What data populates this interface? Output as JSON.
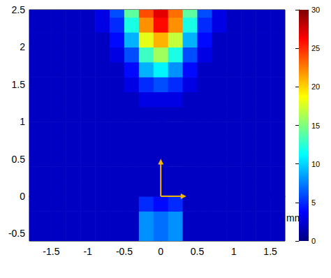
{
  "chart_data": {
    "type": "heatmap",
    "x_label": "mm",
    "x": [
      -1.8,
      -1.6,
      -1.4,
      -1.2,
      -1.0,
      -0.8,
      -0.6,
      -0.4,
      -0.2,
      0,
      0.2,
      0.4,
      0.6,
      0.8,
      1.0,
      1.2,
      1.4,
      1.6
    ],
    "y": [
      -0.5,
      -0.3,
      -0.1,
      0.1,
      0.3,
      0.5,
      0.7,
      0.9,
      1.1,
      1.3,
      1.5,
      1.7,
      1.9,
      2.1,
      2.3,
      2.5
    ],
    "values": [
      [
        2,
        2,
        2,
        2,
        2,
        2,
        2,
        2,
        8,
        7,
        8,
        2,
        2,
        2,
        2,
        2,
        2,
        2
      ],
      [
        2,
        2,
        2,
        2,
        2,
        2,
        2,
        2,
        8,
        7,
        8,
        2,
        2,
        2,
        2,
        2,
        2,
        2
      ],
      [
        2,
        2,
        2,
        2,
        2,
        2,
        2,
        2,
        5,
        4,
        5,
        2,
        2,
        2,
        2,
        2,
        2,
        2
      ],
      [
        2,
        2,
        2,
        2,
        2,
        2,
        2,
        2,
        2,
        2,
        2,
        2,
        2,
        2,
        2,
        2,
        2,
        2
      ],
      [
        2,
        2,
        2,
        2,
        2,
        2,
        2,
        2,
        2,
        2,
        2,
        2,
        2,
        2,
        2,
        2,
        2,
        2
      ],
      [
        2,
        2,
        2,
        2,
        2,
        2,
        2,
        2,
        2,
        2,
        2,
        2,
        2,
        2,
        2,
        2,
        2,
        2
      ],
      [
        2,
        2,
        2,
        2,
        2,
        2,
        2,
        2,
        2,
        2,
        2,
        2,
        2,
        2,
        2,
        2,
        2,
        2
      ],
      [
        2,
        2,
        2,
        2,
        2,
        2,
        2,
        2,
        2,
        2,
        2,
        2,
        2,
        2,
        2,
        2,
        2,
        2
      ],
      [
        2,
        2,
        2,
        2,
        2,
        2,
        2,
        2,
        2,
        2,
        2,
        2,
        2,
        2,
        2,
        2,
        2,
        2
      ],
      [
        2,
        2,
        2,
        2,
        2,
        2,
        2,
        2,
        3,
        3,
        3,
        2,
        2,
        2,
        2,
        2,
        2,
        2
      ],
      [
        2,
        2,
        2,
        2,
        2,
        2,
        2,
        3,
        5,
        6,
        5,
        3,
        2,
        2,
        2,
        2,
        2,
        2
      ],
      [
        2,
        2,
        2,
        2,
        2,
        2,
        2,
        4,
        9,
        11,
        8,
        4,
        2,
        2,
        2,
        2,
        2,
        2
      ],
      [
        2,
        2,
        2,
        2,
        2,
        2,
        3,
        6,
        13,
        16,
        12,
        6,
        3,
        2,
        2,
        2,
        2,
        2
      ],
      [
        2,
        2,
        2,
        2,
        2,
        2,
        4,
        9,
        18,
        21,
        17,
        9,
        4,
        2,
        2,
        2,
        2,
        2
      ],
      [
        2,
        2,
        2,
        2,
        2,
        3,
        5,
        12,
        22,
        26,
        22,
        12,
        5,
        3,
        2,
        2,
        2,
        2
      ],
      [
        2,
        2,
        2,
        2,
        2,
        3,
        6,
        14,
        24,
        27,
        23,
        14,
        6,
        3,
        2,
        2,
        2,
        2
      ]
    ],
    "xlim": [
      -1.8,
      1.7
    ],
    "xticks": [
      -1.5,
      -1,
      -0.5,
      0,
      0.5,
      1,
      1.5
    ],
    "ylim": [
      -0.6,
      2.5
    ],
    "yticks": [
      -0.5,
      0,
      0.5,
      1,
      1.5,
      2,
      2.5
    ],
    "colorbar": {
      "range": [
        0,
        30
      ],
      "ticks": [
        0,
        5,
        10,
        15,
        20,
        25,
        30
      ]
    }
  }
}
